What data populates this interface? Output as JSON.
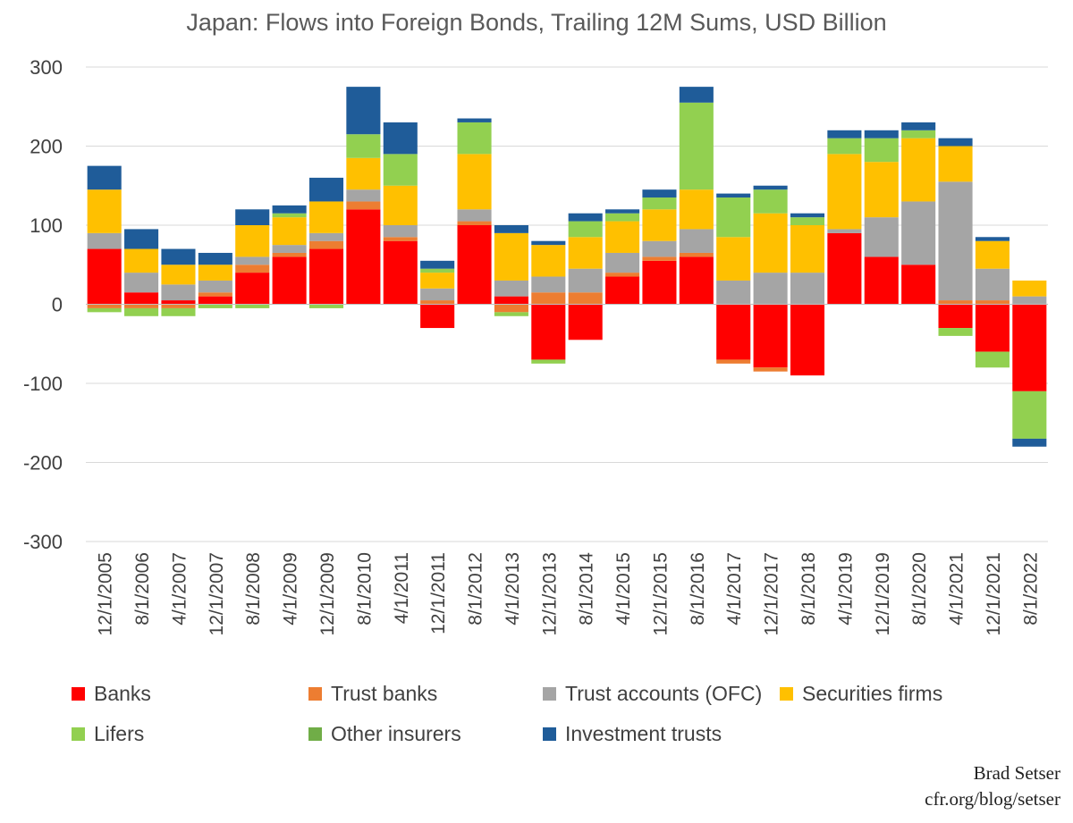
{
  "chart_data": {
    "type": "bar",
    "stacked": true,
    "title": "Japan: Flows into Foreign Bonds, Trailing 12M Sums, USD Billion",
    "ylim": [
      -300,
      300
    ],
    "yticks": [
      300,
      200,
      100,
      0,
      -100,
      -200,
      -300
    ],
    "grid": true,
    "legend_position": "bottom",
    "x_tick_labels": [
      "12/1/2005",
      "8/1/2006",
      "4/1/2007",
      "12/1/2007",
      "8/1/2008",
      "4/1/2009",
      "12/1/2009",
      "8/1/2010",
      "4/1/2011",
      "12/1/2011",
      "8/1/2012",
      "4/1/2013",
      "12/1/2013",
      "8/1/2014",
      "4/1/2015",
      "12/1/2015",
      "8/1/2016",
      "4/1/2017",
      "12/1/2017",
      "8/1/2018",
      "4/1/2019",
      "12/1/2019",
      "8/1/2020",
      "4/1/2021",
      "12/1/2021",
      "8/1/2022"
    ],
    "x": [
      "12/1/2005",
      "8/1/2006",
      "4/1/2007",
      "12/1/2007",
      "8/1/2008",
      "4/1/2009",
      "12/1/2009",
      "8/1/2010",
      "4/1/2011",
      "12/1/2011",
      "8/1/2012",
      "4/1/2013",
      "12/1/2013",
      "8/1/2014",
      "4/1/2015",
      "12/1/2015",
      "8/1/2016",
      "4/1/2017",
      "12/1/2017",
      "8/1/2018",
      "4/1/2019",
      "12/1/2019",
      "8/1/2020",
      "4/1/2021",
      "12/1/2021",
      "8/1/2022"
    ],
    "series": [
      {
        "name": "Banks",
        "color": "#FF0000",
        "values": [
          70,
          15,
          5,
          10,
          40,
          60,
          70,
          120,
          80,
          -30,
          100,
          10,
          -70,
          -45,
          35,
          55,
          60,
          -70,
          -80,
          -90,
          90,
          60,
          50,
          -30,
          -60,
          -110
        ]
      },
      {
        "name": "Trust banks",
        "color": "#ED7D31",
        "values": [
          -5,
          -5,
          -5,
          5,
          10,
          5,
          10,
          10,
          5,
          5,
          5,
          -10,
          15,
          15,
          5,
          5,
          5,
          -5,
          -5,
          0,
          0,
          0,
          0,
          5,
          5,
          0
        ]
      },
      {
        "name": "Trust accounts (OFC)",
        "color": "#A5A5A5",
        "values": [
          20,
          25,
          20,
          15,
          10,
          10,
          10,
          15,
          15,
          15,
          15,
          20,
          20,
          30,
          25,
          20,
          30,
          30,
          40,
          40,
          5,
          50,
          80,
          150,
          40,
          10
        ]
      },
      {
        "name": "Securities firms",
        "color": "#FFC000",
        "values": [
          55,
          30,
          25,
          20,
          40,
          35,
          40,
          40,
          50,
          20,
          70,
          60,
          40,
          40,
          40,
          40,
          50,
          55,
          75,
          60,
          95,
          70,
          80,
          45,
          35,
          20
        ]
      },
      {
        "name": "Lifers",
        "color": "#92D050",
        "values": [
          -5,
          -10,
          -10,
          -5,
          -5,
          5,
          -5,
          30,
          40,
          5,
          40,
          -5,
          -5,
          20,
          10,
          15,
          110,
          50,
          30,
          10,
          20,
          30,
          10,
          -10,
          -20,
          -60
        ]
      },
      {
        "name": "Other insurers",
        "color": "#70AD47",
        "values": [
          0,
          0,
          0,
          0,
          0,
          0,
          0,
          0,
          0,
          0,
          0,
          0,
          0,
          0,
          0,
          0,
          0,
          0,
          0,
          0,
          0,
          0,
          0,
          0,
          0,
          0
        ]
      },
      {
        "name": "Investment trusts",
        "color": "#1F5C99",
        "values": [
          30,
          25,
          20,
          15,
          20,
          10,
          30,
          60,
          40,
          10,
          5,
          10,
          5,
          10,
          5,
          10,
          20,
          5,
          5,
          5,
          10,
          10,
          10,
          10,
          5,
          -10
        ]
      }
    ]
  },
  "footer": {
    "author": "Brad Setser",
    "source": "cfr.org/blog/setser"
  }
}
